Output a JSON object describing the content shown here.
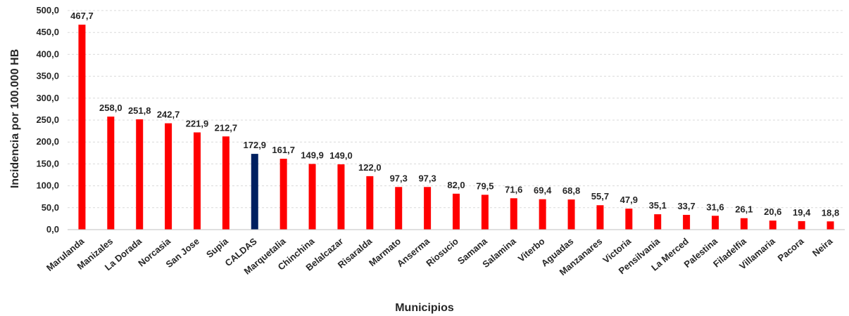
{
  "chart_data": {
    "type": "bar",
    "title": "",
    "xlabel": "Municipios",
    "ylabel": "Incidencia por 100.000 HB",
    "ylim": [
      0,
      500
    ],
    "y_ticks": [
      0,
      50,
      100,
      150,
      200,
      250,
      300,
      350,
      400,
      450,
      500
    ],
    "y_tick_labels": [
      "0,0",
      "50,0",
      "100,0",
      "150,0",
      "200,0",
      "250,0",
      "300,0",
      "350,0",
      "400,0",
      "450,0",
      "500,0"
    ],
    "grid": true,
    "legend": "none",
    "categories": [
      "Marulanda",
      "Manizales",
      "La Dorada",
      "Norcasia",
      "San Jose",
      "Supia",
      "CALDAS",
      "Marquetalia",
      "Chinchina",
      "Belalcazar",
      "Risaralda",
      "Marmato",
      "Anserma",
      "Riosucio",
      "Samana",
      "Salamina",
      "Viterbo",
      "Aguadas",
      "Manzanares",
      "Victoria",
      "Pensilvania",
      "La Merced",
      "Palestina",
      "Filadelfia",
      "Villamaria",
      "Pacora",
      "Neira"
    ],
    "values": [
      467.7,
      258.0,
      251.8,
      242.7,
      221.9,
      212.7,
      172.9,
      161.7,
      149.9,
      149.0,
      122.0,
      97.3,
      97.3,
      82.0,
      79.5,
      71.6,
      69.4,
      68.8,
      55.7,
      47.9,
      35.1,
      33.7,
      31.6,
      26.1,
      20.6,
      19.4,
      18.8
    ],
    "value_labels": [
      "467,7",
      "258,0",
      "251,8",
      "242,7",
      "221,9",
      "212,7",
      "172,9",
      "161,7",
      "149,9",
      "149,0",
      "122,0",
      "97,3",
      "97,3",
      "82,0",
      "79,5",
      "71,6",
      "69,4",
      "68,8",
      "55,7",
      "47,9",
      "35,1",
      "33,7",
      "31,6",
      "26,1",
      "20,6",
      "19,4",
      "18,8"
    ],
    "colors": {
      "default_bar": "#ff0000",
      "highlight_bar": "#002060",
      "highlight_category": "CALDAS"
    }
  }
}
